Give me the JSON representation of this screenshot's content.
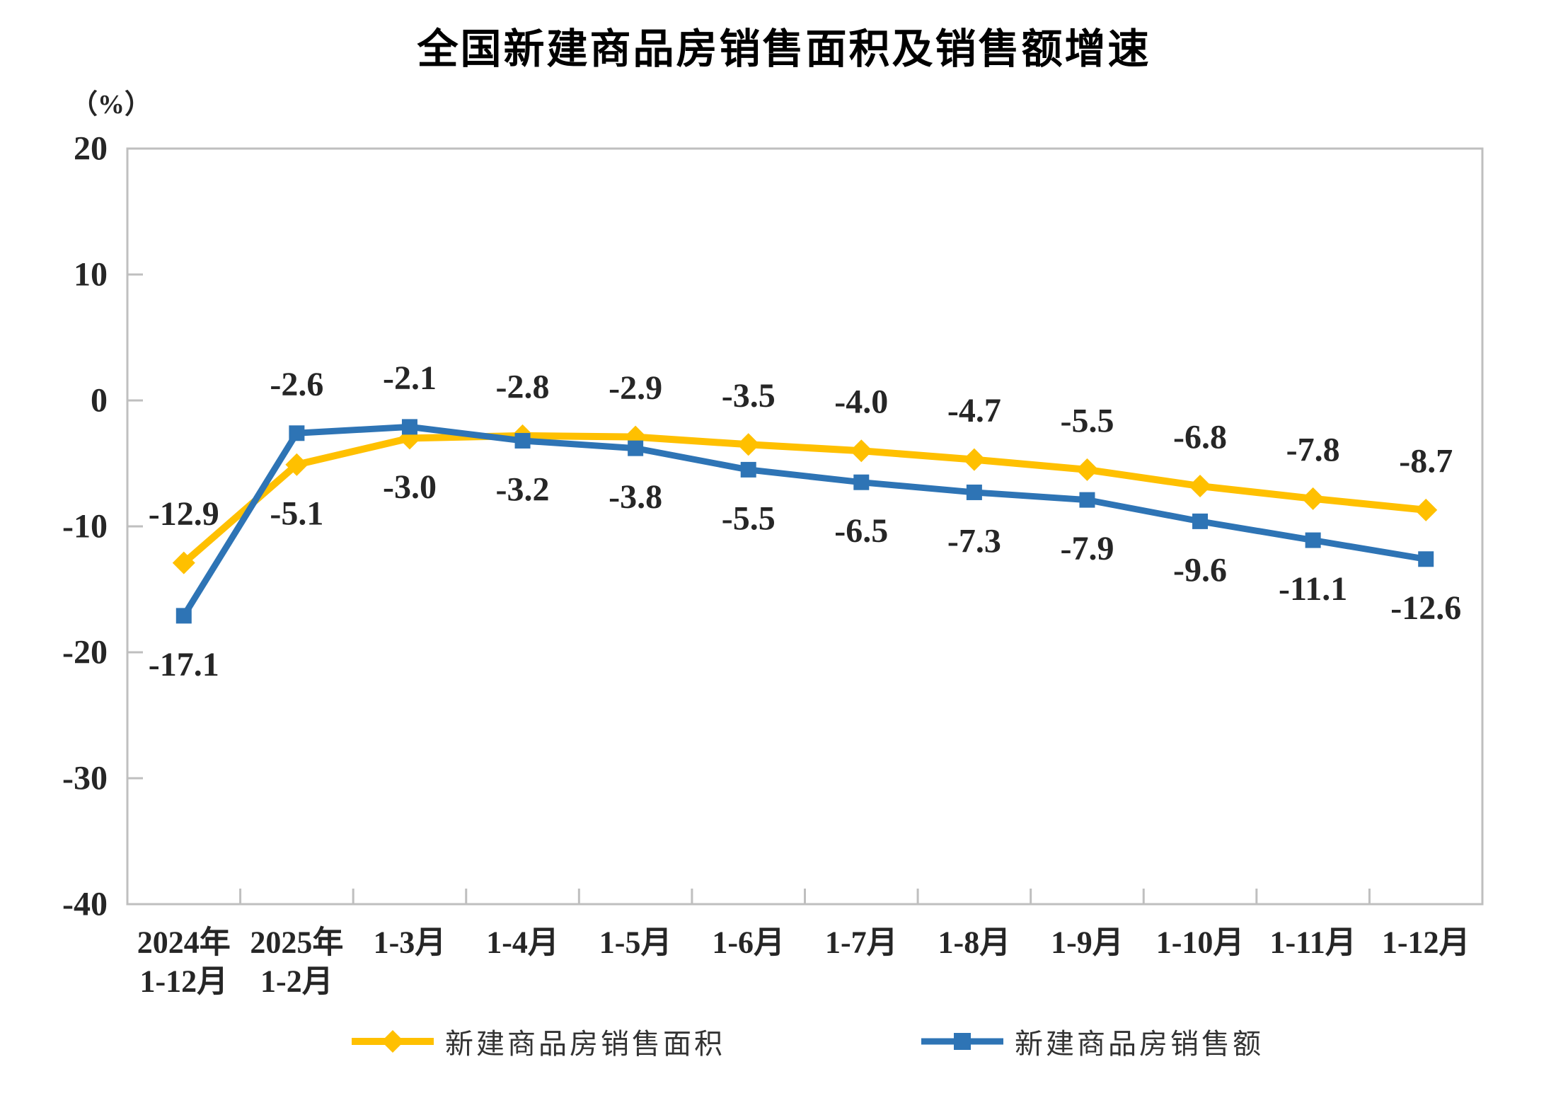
{
  "chart_data": {
    "type": "line",
    "title": "全国新建商品房销售面积及销售额增速",
    "unit_label": "（%）",
    "categories": [
      "2024年\n1-12月",
      "2025年\n1-2月",
      "1-3月",
      "1-4月",
      "1-5月",
      "1-6月",
      "1-7月",
      "1-8月",
      "1-9月",
      "1-10月",
      "1-11月",
      "1-12月"
    ],
    "y_ticks": [
      20,
      10,
      0,
      -10,
      -20,
      -30,
      -40
    ],
    "ylim": [
      -40,
      20
    ],
    "grid": false,
    "legend_position": "bottom",
    "series": [
      {
        "name": "新建商品房销售面积",
        "marker": "diamond",
        "color": "#FFC000",
        "values": [
          -12.9,
          -5.1,
          -3.0,
          -2.8,
          -2.9,
          -3.5,
          -4.0,
          -4.7,
          -5.5,
          -6.8,
          -7.8,
          -8.7
        ]
      },
      {
        "name": "新建商品房销售额",
        "marker": "square",
        "color": "#2E74B5",
        "values": [
          -17.1,
          -2.6,
          -2.1,
          -3.2,
          -3.8,
          -5.5,
          -6.5,
          -7.3,
          -7.9,
          -9.6,
          -11.1,
          -12.6
        ]
      }
    ],
    "axis_color": "#BFBFBF",
    "label_color": "#262626"
  }
}
